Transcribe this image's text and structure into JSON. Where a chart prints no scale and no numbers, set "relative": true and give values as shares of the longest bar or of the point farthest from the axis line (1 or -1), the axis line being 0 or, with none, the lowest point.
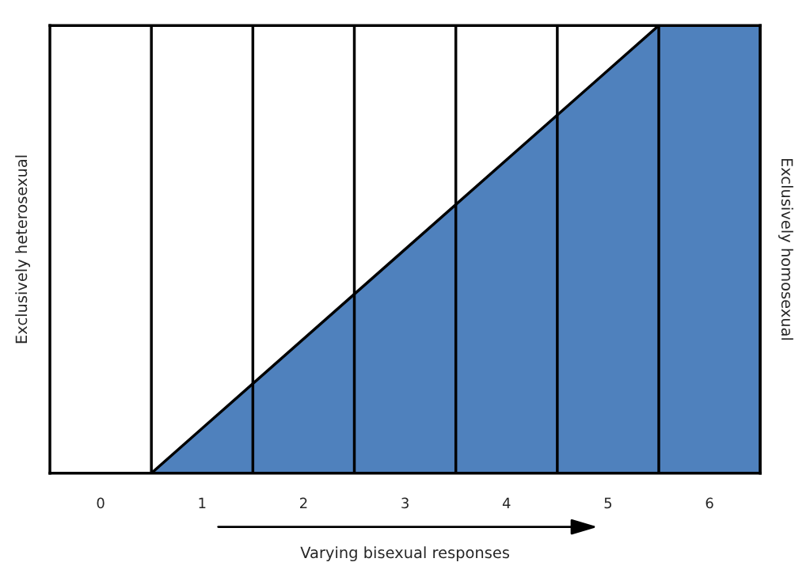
{
  "chart_data": {
    "type": "area",
    "relative": true,
    "xlabel": "Varying bisexual responses",
    "ylabel": "Exclusively heterosexual",
    "y2label": "Exclusively homosexual",
    "x": [
      -0.5,
      0.5,
      5.5,
      6.5
    ],
    "series": [
      {
        "color": "#4f81bd",
        "values": [
          0,
          0,
          1,
          1
        ]
      }
    ],
    "xlim": [
      -0.5,
      6.5
    ],
    "xticks": [
      0,
      1,
      2,
      3,
      4,
      5,
      6
    ],
    "ref_lines": [
      {
        "axis": "x",
        "value": 0.5,
        "color": "#000000"
      },
      {
        "axis": "x",
        "value": 1.5,
        "color": "#000000"
      },
      {
        "axis": "x",
        "value": 2.5,
        "color": "#000000"
      },
      {
        "axis": "x",
        "value": 3.5,
        "color": "#000000"
      },
      {
        "axis": "x",
        "value": 4.5,
        "color": "#000000"
      },
      {
        "axis": "x",
        "value": 5.5,
        "color": "#000000"
      }
    ],
    "tick_labels": "x",
    "grid": false,
    "legend": false
  }
}
